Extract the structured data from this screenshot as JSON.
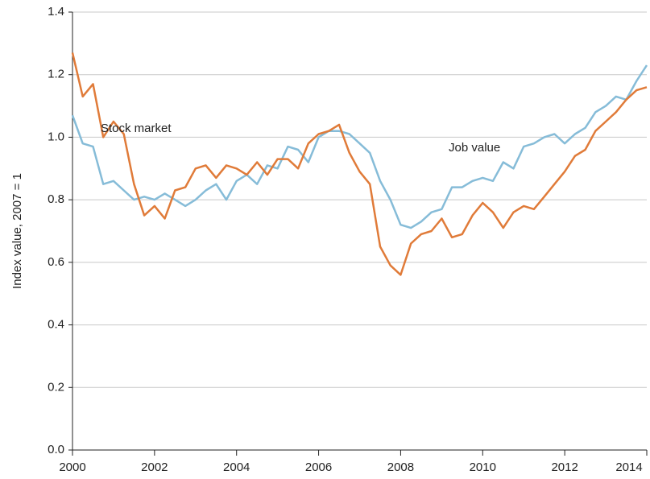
{
  "chart_data": {
    "type": "line",
    "y_label": "Index value, 2007 = 1",
    "annotations": [
      "Stock market",
      "Job value"
    ],
    "x": [
      2000,
      2000.25,
      2000.5,
      2000.75,
      2001,
      2001.25,
      2001.5,
      2001.75,
      2002,
      2002.25,
      2002.5,
      2002.75,
      2003,
      2003.25,
      2003.5,
      2003.75,
      2004,
      2004.25,
      2004.5,
      2004.75,
      2005,
      2005.25,
      2005.5,
      2005.75,
      2006,
      2006.25,
      2006.5,
      2006.75,
      2007,
      2007.25,
      2007.5,
      2007.75,
      2008,
      2008.25,
      2008.5,
      2008.75,
      2009,
      2009.25,
      2009.5,
      2009.75,
      2010,
      2010.25,
      2010.5,
      2010.75,
      2011,
      2011.25,
      2011.5,
      2011.75,
      2012,
      2012.25,
      2012.5,
      2012.75,
      2013,
      2013.25,
      2013.5,
      2013.75,
      2014
    ],
    "series": [
      {
        "name": "Job value",
        "color": "#86bcd8",
        "values": [
          1.07,
          0.98,
          0.97,
          0.85,
          0.86,
          0.83,
          0.8,
          0.81,
          0.8,
          0.82,
          0.8,
          0.78,
          0.8,
          0.83,
          0.85,
          0.8,
          0.86,
          0.88,
          0.85,
          0.91,
          0.9,
          0.97,
          0.96,
          0.92,
          1.0,
          1.02,
          1.02,
          1.01,
          0.98,
          0.95,
          0.86,
          0.8,
          0.72,
          0.71,
          0.73,
          0.76,
          0.77,
          0.84,
          0.84,
          0.86,
          0.87,
          0.86,
          0.92,
          0.9,
          0.97,
          0.98,
          1.0,
          1.01,
          0.98,
          1.01,
          1.03,
          1.08,
          1.1,
          1.13,
          1.12,
          1.18,
          1.23
        ]
      },
      {
        "name": "Stock market",
        "color": "#e07b39",
        "values": [
          1.27,
          1.13,
          1.17,
          1.0,
          1.05,
          1.01,
          0.85,
          0.75,
          0.78,
          0.74,
          0.83,
          0.84,
          0.9,
          0.91,
          0.87,
          0.91,
          0.9,
          0.88,
          0.92,
          0.88,
          0.93,
          0.93,
          0.9,
          0.98,
          1.01,
          1.02,
          1.04,
          0.95,
          0.89,
          0.85,
          0.65,
          0.59,
          0.56,
          0.66,
          0.69,
          0.7,
          0.74,
          0.68,
          0.69,
          0.75,
          0.79,
          0.76,
          0.71,
          0.76,
          0.78,
          0.77,
          0.81,
          0.85,
          0.89,
          0.94,
          0.96,
          1.02,
          1.05,
          1.08,
          1.12,
          1.15,
          1.16
        ]
      }
    ],
    "xlim": [
      2000,
      2014
    ],
    "xticks": [
      2000,
      2002,
      2004,
      2006,
      2008,
      2010,
      2012,
      2014
    ],
    "ylim": [
      0,
      1.4
    ],
    "yticks": [
      {
        "value": 0,
        "label": "0.0"
      },
      0.2,
      0.4,
      0.6,
      0.8,
      {
        "value": 1,
        "label": "1.0"
      },
      1.2,
      1.4
    ],
    "grid": true
  }
}
